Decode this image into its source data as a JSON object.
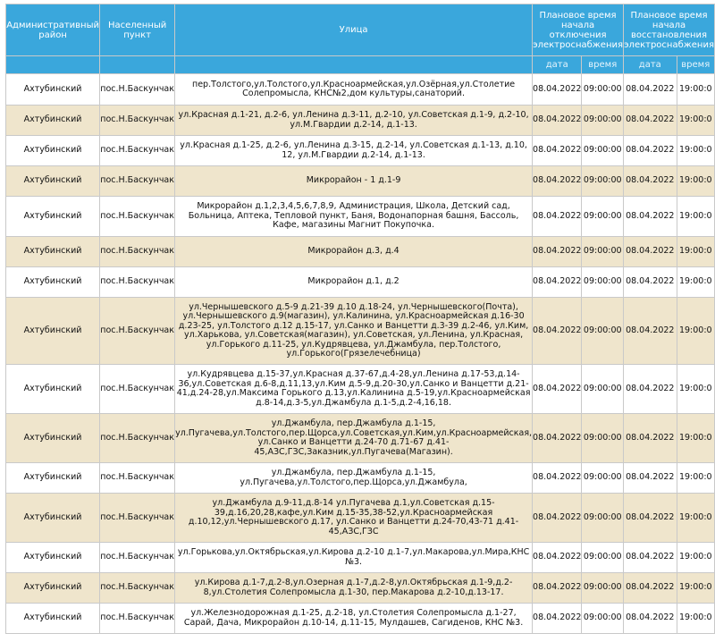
{
  "headers": {
    "district": "Административный район",
    "settlement": "Населенный пункт",
    "street": "Улица",
    "off_time": "Плановое время начала отключения электроснабжения",
    "restore_time": "Плановое время начала восстановления электроснабжения",
    "date": "дата",
    "time": "время"
  },
  "rows": [
    {
      "district": "Ахтубинский",
      "settlement": "пос.Н.Баскунчак",
      "street": "пер.Толстого,ул.Толстого,ул.Красноармейская,ул.Озёрная,ул.Столетие Солепромысла, КНС№2,дом культуры,санаторий.",
      "off_date": "08.04.2022",
      "off_time": "09:00:00",
      "on_date": "08.04.2022",
      "on_time": "19:00:0"
    },
    {
      "district": "Ахтубинский",
      "settlement": "пос.Н.Баскунчак",
      "street": "ул.Красная д.1-21, д.2-6, ул.Ленина д.3-11, д.2-10, ул.Советская д.1-9, д.2-10, ул.М.Гвардии д.2-14, д.1-13.",
      "off_date": "08.04.2022",
      "off_time": "09:00:00",
      "on_date": "08.04.2022",
      "on_time": "19:00:0"
    },
    {
      "district": "Ахтубинский",
      "settlement": "пос.Н.Баскунчак",
      "street": "ул.Красная д.1-25, д.2-6, ул.Ленина д.3-15, д.2-14, ул.Советская д.1-13, д.10, 12, ул.М.Гвардии д.2-14, д.1-13.",
      "off_date": "08.04.2022",
      "off_time": "09:00:00",
      "on_date": "08.04.2022",
      "on_time": "19:00:0"
    },
    {
      "district": "Ахтубинский",
      "settlement": "пос.Н.Баскунчак",
      "street": "Микрорайон - 1 д.1-9",
      "off_date": "08.04.2022",
      "off_time": "09:00:00",
      "on_date": "08.04.2022",
      "on_time": "19:00:0"
    },
    {
      "district": "Ахтубинский",
      "settlement": "пос.Н.Баскунчак",
      "street": "Микрорайон д.1,2,3,4,5,6,7,8,9, Администрация, Школа, Детский сад, Больница, Аптека, Тепловой пункт, Баня, Водонапорная башня, Бассоль, Кафе, магазины Магнит Покупочка.",
      "off_date": "08.04.2022",
      "off_time": "09:00:00",
      "on_date": "08.04.2022",
      "on_time": "19:00:0"
    },
    {
      "district": "Ахтубинский",
      "settlement": "пос.Н.Баскунчак",
      "street": "Микрорайон д.3, д.4",
      "off_date": "08.04.2022",
      "off_time": "09:00:00",
      "on_date": "08.04.2022",
      "on_time": "19:00:0"
    },
    {
      "district": "Ахтубинский",
      "settlement": "пос.Н.Баскунчак",
      "street": "Микрорайон д.1, д.2",
      "off_date": "08.04.2022",
      "off_time": "09:00:00",
      "on_date": "08.04.2022",
      "on_time": "19:00:0"
    },
    {
      "district": "Ахтубинский",
      "settlement": "пос.Н.Баскунчак",
      "street": "ул.Чернышевского д.5-9 д.21-39 д.10 д.18-24, ул.Чернышевского(Почта), ул.Чернышевского д.9(магазин), ул.Калинина, ул.Красноармейская д.16-30 д.23-25, ул.Толстого д.12 д.15-17, ул.Санко и Ванцетти д.3-39 д.2-46, ул.Ким, ул.Харькова, ул.Советская(магазин), ул.Советская, ул.Ленина, ул.Красная, ул.Горького д.11-25, ул.Кудрявцева, ул.Джамбула, пер.Толстого, ул.Горького(Грязелечебница)",
      "off_date": "08.04.2022",
      "off_time": "09:00:00",
      "on_date": "08.04.2022",
      "on_time": "19:00:0"
    },
    {
      "district": "Ахтубинский",
      "settlement": "пос.Н.Баскунчак",
      "street": "ул.Кудрявцева д.15-37,ул.Красная д.37-67,д.4-28,ул.Ленина д.17-53,д.14-36,ул.Советская д.6-8,д.11,13,ул.Ким д.5-9,д.20-30,ул.Санко и Ванцетти д.21-41,д.24-28,ул.Максима Горького д.13,ул.Калинина д.5-19,ул.Красноармейская д.8-14,д.3-5,ул.Джамбула д.1-5,д.2-4,16,18.",
      "off_date": "08.04.2022",
      "off_time": "09:00:00",
      "on_date": "08.04.2022",
      "on_time": "19:00:0"
    },
    {
      "district": "Ахтубинский",
      "settlement": "пос.Н.Баскунчак",
      "street": "ул.Джамбула, пер.Джамбула д.1-15, ул.Пугачева,ул.Толстого,пер.Щорса,ул.Советская,ул.Ким,ул.Красноармейская, ул.Санко и Ванцетти д.24-70 д.71-67 д.41-45,АЗС,ГЗС,Заказник,ул.Пугачева(Магазин).",
      "off_date": "08.04.2022",
      "off_time": "09:00:00",
      "on_date": "08.04.2022",
      "on_time": "19:00:0"
    },
    {
      "district": "Ахтубинский",
      "settlement": "пос.Н.Баскунчак",
      "street": "ул.Джамбула, пер.Джамбула д.1-15, ул.Пугачева,ул.Толстого,пер.Щорса,ул.Джамбула,",
      "off_date": "08.04.2022",
      "off_time": "09:00:00",
      "on_date": "08.04.2022",
      "on_time": "19:00:0"
    },
    {
      "district": "Ахтубинский",
      "settlement": "пос.Н.Баскунчак",
      "street": "ул.Джамбула д.9-11,д.8-14 ул.Пугачева д.1,ул.Советская д.15-39,д.16,20,28,кафе,ул.Ким д.15-35,38-52,ул.Красноармейская д.10,12,ул.Чернышевского д.17, ул.Санко и Ванцетти д.24-70,43-71 д.41-45,АЗС,ГЗС",
      "off_date": "08.04.2022",
      "off_time": "09:00:00",
      "on_date": "08.04.2022",
      "on_time": "19:00:0"
    },
    {
      "district": "Ахтубинский",
      "settlement": "пос.Н.Баскунчак",
      "street": "ул.Горькова,ул.Октябрьская,ул.Кирова д.2-10 д.1-7,ул.Макарова,ул.Мира,КНС №3.",
      "off_date": "08.04.2022",
      "off_time": "09:00:00",
      "on_date": "08.04.2022",
      "on_time": "19:00:0"
    },
    {
      "district": "Ахтубинский",
      "settlement": "пос.Н.Баскунчак",
      "street": "ул.Кирова д.1-7,д.2-8,ул.Озерная д.1-7,д.2-8,ул.Октябрьская д.1-9,д.2-8,ул.Столетия Солепромысла д.1-30, пер.Макарова д.2-10,д.13-17.",
      "off_date": "08.04.2022",
      "off_time": "09:00:00",
      "on_date": "08.04.2022",
      "on_time": "19:00:0"
    },
    {
      "district": "Ахтубинский",
      "settlement": "пос.Н.Баскунчак",
      "street": "ул.Железнодорожная д.1-25, д.2-18, ул.Столетия Солепромысла д.1-27, Сарай, Дача, Микрорайон д.10-14, д.11-15, Мулдашев, Сагиденов, КНС №3.",
      "off_date": "08.04.2022",
      "off_time": "09:00:00",
      "on_date": "08.04.2022",
      "on_time": "19:00:0"
    }
  ]
}
